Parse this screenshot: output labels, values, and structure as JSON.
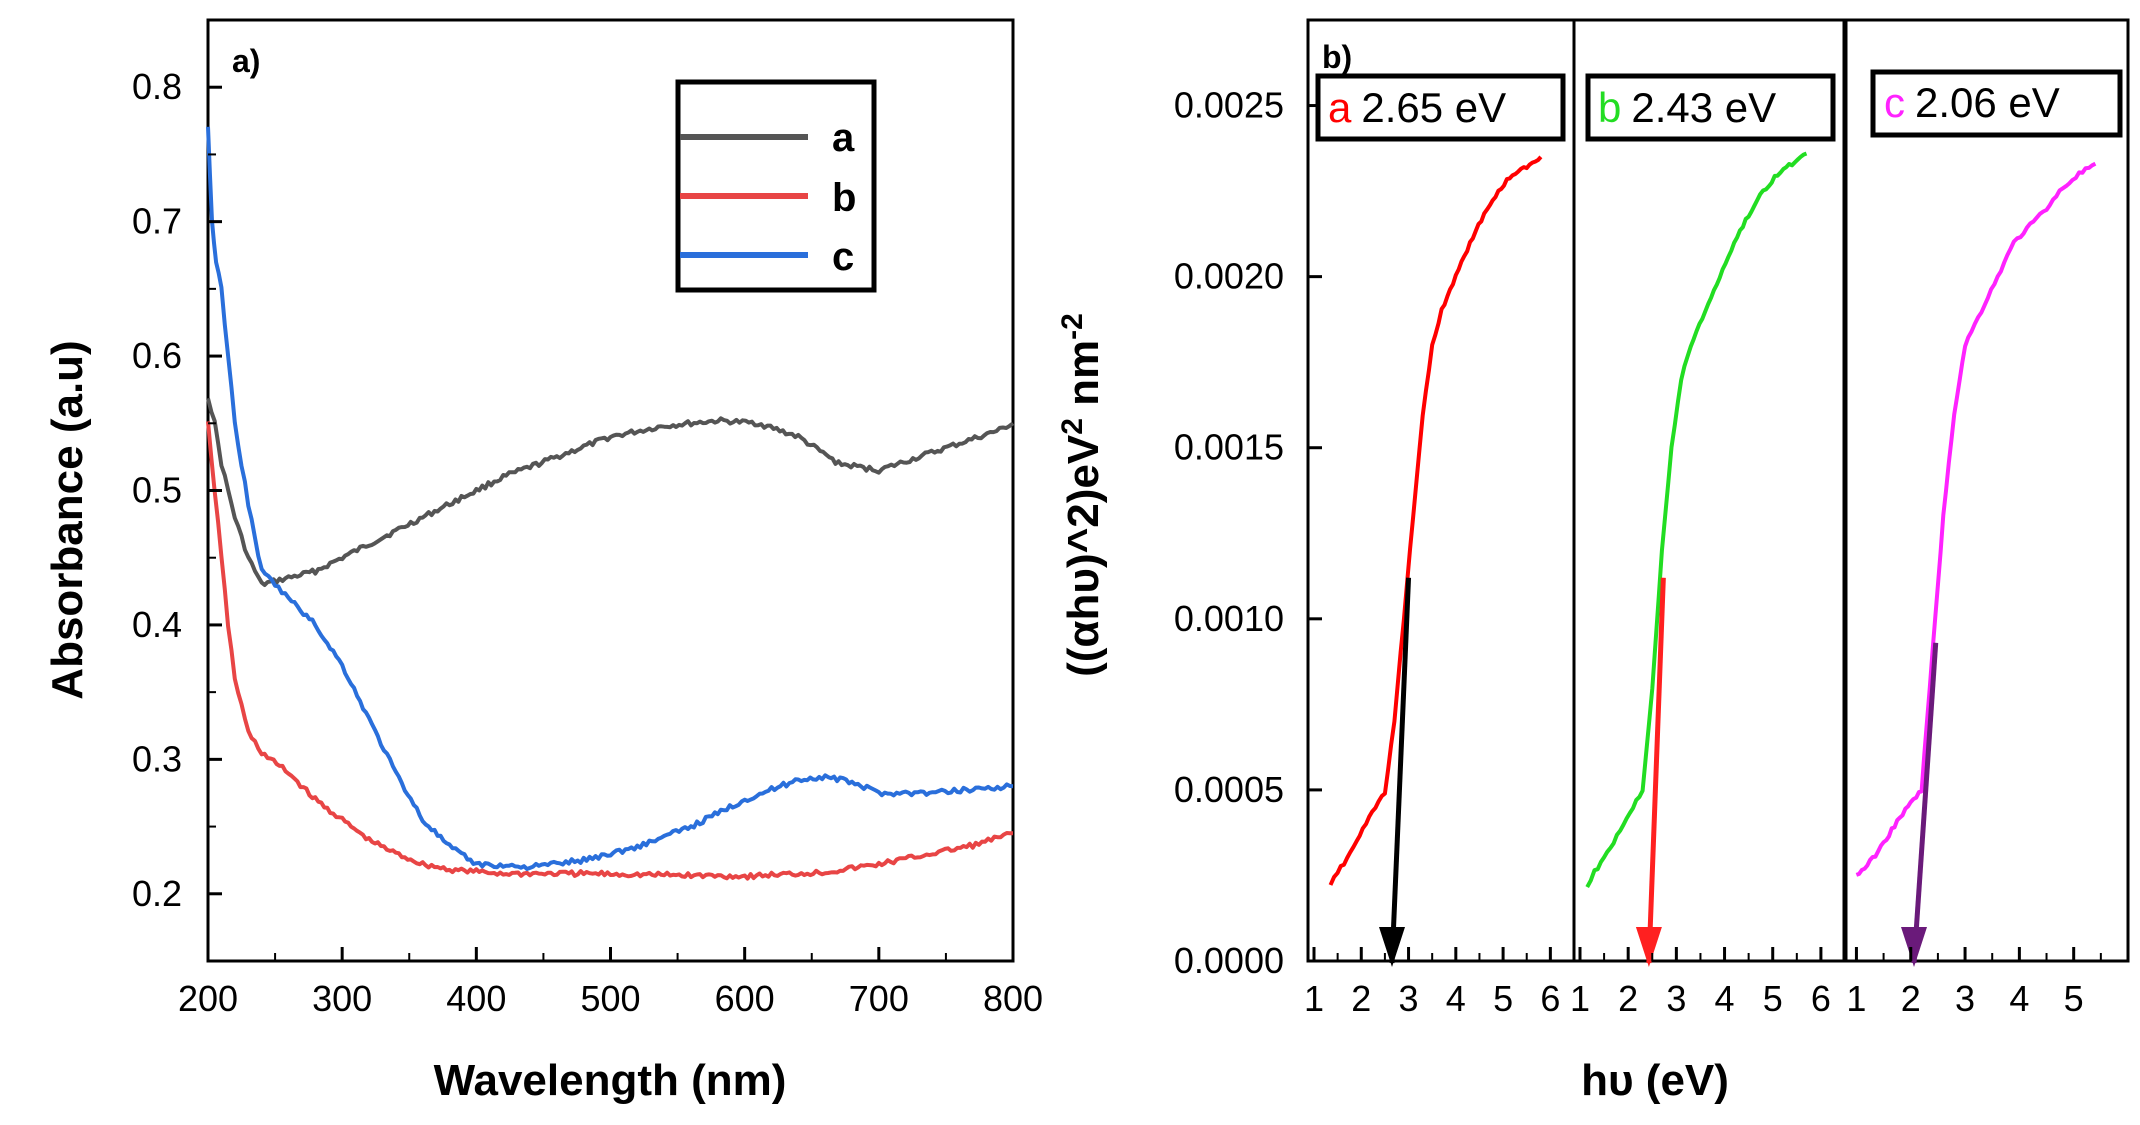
{
  "chart_data": [
    {
      "panel": "a)",
      "type": "line",
      "xlabel": "Wavelength (nm)",
      "ylabel": "Absorbance (a.u)",
      "xlim": [
        200,
        800
      ],
      "ylim": [
        0.15,
        0.85
      ],
      "xticks": [
        "200",
        "300",
        "400",
        "500",
        "600",
        "700",
        "800"
      ],
      "yticks": [
        "0.2",
        "0.3",
        "0.4",
        "0.5",
        "0.6",
        "0.7",
        "0.8"
      ],
      "legend_position": "top-right",
      "series": [
        {
          "name": "a",
          "color": "#555555",
          "x": [
            200,
            205,
            210,
            220,
            230,
            240,
            260,
            280,
            300,
            340,
            380,
            420,
            460,
            500,
            540,
            580,
            610,
            640,
            670,
            700,
            730,
            760,
            790,
            800
          ],
          "y": [
            0.57,
            0.55,
            0.52,
            0.48,
            0.45,
            0.43,
            0.435,
            0.44,
            0.45,
            0.47,
            0.49,
            0.51,
            0.525,
            0.54,
            0.548,
            0.552,
            0.55,
            0.54,
            0.52,
            0.515,
            0.525,
            0.535,
            0.545,
            0.55
          ]
        },
        {
          "name": "b",
          "color": "#e84545",
          "x": [
            200,
            205,
            210,
            215,
            220,
            230,
            240,
            260,
            280,
            300,
            320,
            340,
            360,
            380,
            420,
            480,
            540,
            600,
            660,
            700,
            740,
            770,
            800
          ],
          "y": [
            0.55,
            0.5,
            0.45,
            0.4,
            0.36,
            0.32,
            0.305,
            0.29,
            0.27,
            0.255,
            0.24,
            0.23,
            0.222,
            0.218,
            0.215,
            0.215,
            0.214,
            0.213,
            0.216,
            0.222,
            0.23,
            0.236,
            0.245
          ]
        },
        {
          "name": "c",
          "color": "#2a6fdb",
          "x": [
            200,
            203,
            206,
            210,
            215,
            220,
            230,
            240,
            250,
            260,
            280,
            300,
            320,
            340,
            360,
            380,
            400,
            440,
            480,
            520,
            560,
            600,
            640,
            660,
            680,
            700,
            740,
            770,
            800
          ],
          "y": [
            0.77,
            0.7,
            0.67,
            0.65,
            0.6,
            0.55,
            0.49,
            0.44,
            0.43,
            0.42,
            0.4,
            0.37,
            0.33,
            0.29,
            0.255,
            0.235,
            0.222,
            0.22,
            0.225,
            0.235,
            0.25,
            0.27,
            0.285,
            0.287,
            0.283,
            0.275,
            0.275,
            0.278,
            0.28
          ]
        }
      ]
    },
    {
      "panel": "b)",
      "type": "line",
      "xlabel": "hυ (eV)",
      "ylabel_parts": [
        "((αhυ)^2)eV",
        "2",
        " nm",
        "-2"
      ],
      "ylabel_caret": "^2",
      "ylim": [
        0,
        0.00275
      ],
      "yticks": [
        "0.0000",
        "0.0005",
        "0.0010",
        "0.0015",
        "0.0020",
        "0.0025"
      ],
      "xticks": [
        "1",
        "2",
        "3",
        "4",
        "5",
        "6"
      ],
      "subpanels": [
        {
          "name": "a",
          "gap_text": "2.65 eV",
          "band_gap": 2.65,
          "color": "#ff0000",
          "tangent_color": "#000000",
          "xlim": [
            1,
            6.5
          ],
          "x": [
            1.35,
            1.5,
            1.7,
            1.9,
            2.1,
            2.3,
            2.5,
            2.7,
            2.9,
            3.1,
            3.3,
            3.5,
            3.7,
            4.0,
            4.3,
            4.6,
            4.9,
            5.2,
            5.5,
            5.8
          ],
          "y": [
            0.00022,
            0.00026,
            0.0003,
            0.00035,
            0.0004,
            0.00045,
            0.00049,
            0.0007,
            0.001,
            0.0013,
            0.0016,
            0.0018,
            0.0019,
            0.002,
            0.0021,
            0.00218,
            0.00225,
            0.0023,
            0.00232,
            0.00235
          ]
        },
        {
          "name": "b",
          "gap_text": "2.43 eV",
          "band_gap": 2.43,
          "color": "#22dd22",
          "tangent_color": "#ff2020",
          "xlim": [
            1,
            6.5
          ],
          "x": [
            1.15,
            1.3,
            1.5,
            1.7,
            1.9,
            2.1,
            2.3,
            2.5,
            2.7,
            2.9,
            3.1,
            3.3,
            3.6,
            3.9,
            4.2,
            4.5,
            4.8,
            5.1,
            5.4,
            5.7
          ],
          "y": [
            0.00022,
            0.00026,
            0.0003,
            0.00035,
            0.0004,
            0.00045,
            0.0005,
            0.0008,
            0.0012,
            0.0015,
            0.0017,
            0.0018,
            0.0019,
            0.002,
            0.0021,
            0.00218,
            0.00225,
            0.0023,
            0.00233,
            0.00236
          ]
        },
        {
          "name": "c",
          "gap_text": "2.06 eV",
          "band_gap": 2.06,
          "color": "#ff22ff",
          "tangent_color": "#6a1a7a",
          "xlim": [
            0.9,
            6
          ],
          "x": [
            1.0,
            1.2,
            1.4,
            1.6,
            1.8,
            2.0,
            2.2,
            2.4,
            2.6,
            2.8,
            3.0,
            3.3,
            3.6,
            3.9,
            4.2,
            4.5,
            4.8,
            5.1,
            5.4
          ],
          "y": [
            0.00025,
            0.00028,
            0.00032,
            0.00037,
            0.00042,
            0.00046,
            0.0005,
            0.0009,
            0.0013,
            0.0016,
            0.0018,
            0.0019,
            0.002,
            0.0021,
            0.00215,
            0.0022,
            0.00226,
            0.0023,
            0.00233
          ]
        }
      ]
    }
  ]
}
